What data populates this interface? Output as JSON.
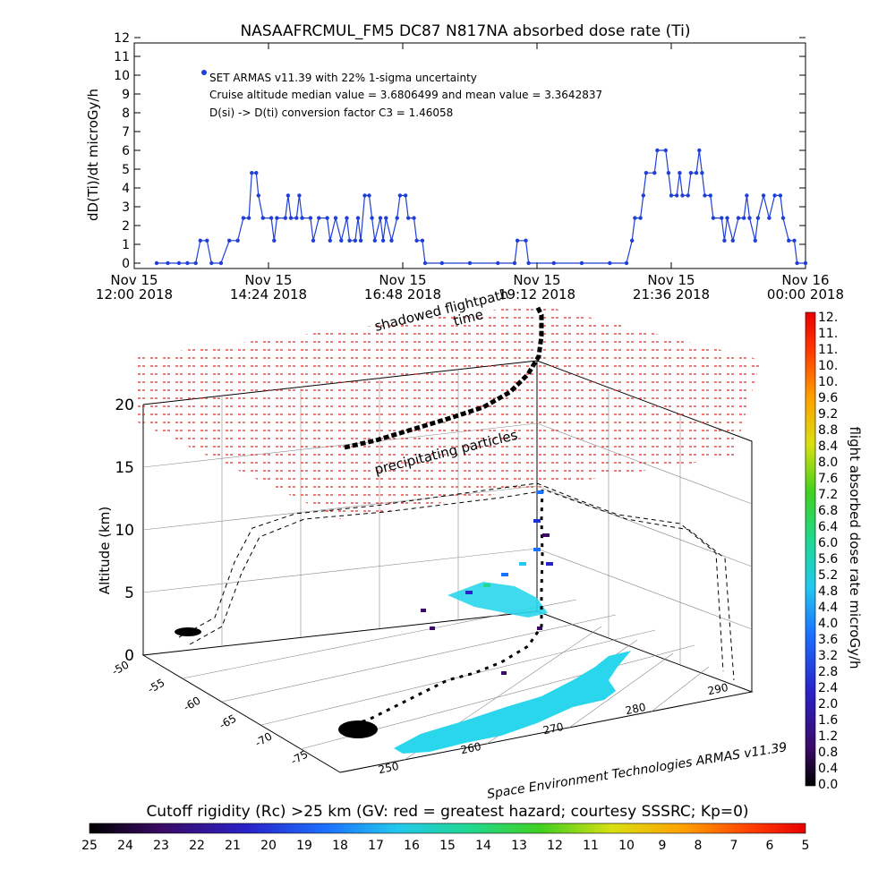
{
  "chart_data": [
    {
      "type": "line",
      "title": "NASAAFRCMUL_FM5 DC87 N817NA absorbed dose rate (Ti)",
      "ylabel": "dD(Ti)/dt microGy/h",
      "ylim": [
        0,
        12
      ],
      "yticks": [
        "0",
        "1",
        "2",
        "3",
        "4",
        "5",
        "6",
        "7",
        "8",
        "9",
        "10",
        "11",
        "12"
      ],
      "xticks": [
        {
          "top": "Nov 15",
          "bottom": "12:00 2018"
        },
        {
          "top": "Nov 15",
          "bottom": "14:24 2018"
        },
        {
          "top": "Nov 15",
          "bottom": "16:48 2018"
        },
        {
          "top": "Nov 15",
          "bottom": "19:12 2018"
        },
        {
          "top": "Nov 15",
          "bottom": "21:36 2018"
        },
        {
          "top": "Nov 16",
          "bottom": "00:00 2018"
        }
      ],
      "xlim_hours": [
        12.0,
        24.0
      ],
      "legend_text": [
        "SET ARMAS v11.39 with 22% 1-sigma uncertainty",
        "Cruise altitude median value = 3.6806499 and mean value = 3.3642837",
        "D(si) -> D(ti) conversion factor C3 = 1.46058"
      ],
      "series": [
        {
          "color": "#1f3fd6",
          "points": [
            [
              12.4,
              0
            ],
            [
              12.6,
              0
            ],
            [
              12.8,
              0
            ],
            [
              12.95,
              0
            ],
            [
              13.1,
              0
            ],
            [
              13.18,
              1.2
            ],
            [
              13.3,
              1.2
            ],
            [
              13.38,
              0
            ],
            [
              13.55,
              0
            ],
            [
              13.7,
              1.2
            ],
            [
              13.85,
              1.2
            ],
            [
              13.95,
              2.4
            ],
            [
              14.05,
              2.4
            ],
            [
              14.1,
              4.8
            ],
            [
              14.18,
              4.8
            ],
            [
              14.22,
              3.6
            ],
            [
              14.3,
              2.4
            ],
            [
              14.45,
              2.4
            ],
            [
              14.5,
              1.2
            ],
            [
              14.55,
              2.4
            ],
            [
              14.7,
              2.4
            ],
            [
              14.75,
              3.6
            ],
            [
              14.8,
              2.4
            ],
            [
              14.9,
              2.4
            ],
            [
              14.95,
              3.6
            ],
            [
              15.0,
              2.4
            ],
            [
              15.15,
              2.4
            ],
            [
              15.2,
              1.2
            ],
            [
              15.3,
              2.4
            ],
            [
              15.45,
              2.4
            ],
            [
              15.5,
              1.2
            ],
            [
              15.6,
              2.4
            ],
            [
              15.7,
              1.2
            ],
            [
              15.8,
              2.4
            ],
            [
              15.85,
              1.2
            ],
            [
              15.95,
              1.2
            ],
            [
              16.0,
              2.4
            ],
            [
              16.05,
              1.2
            ],
            [
              16.12,
              3.6
            ],
            [
              16.2,
              3.6
            ],
            [
              16.25,
              2.4
            ],
            [
              16.3,
              1.2
            ],
            [
              16.4,
              2.4
            ],
            [
              16.45,
              1.2
            ],
            [
              16.5,
              2.4
            ],
            [
              16.6,
              1.2
            ],
            [
              16.7,
              2.4
            ],
            [
              16.75,
              3.6
            ],
            [
              16.85,
              3.6
            ],
            [
              16.9,
              2.4
            ],
            [
              17.0,
              2.4
            ],
            [
              17.05,
              1.2
            ],
            [
              17.15,
              1.2
            ],
            [
              17.2,
              0
            ],
            [
              17.5,
              0
            ],
            [
              18.0,
              0
            ],
            [
              18.5,
              0
            ],
            [
              18.8,
              0
            ],
            [
              18.85,
              1.2
            ],
            [
              19.0,
              1.2
            ],
            [
              19.05,
              0
            ],
            [
              19.5,
              0
            ],
            [
              20.0,
              0
            ],
            [
              20.5,
              0
            ],
            [
              20.8,
              0
            ],
            [
              20.9,
              1.2
            ],
            [
              20.95,
              2.4
            ],
            [
              21.05,
              2.4
            ],
            [
              21.1,
              3.6
            ],
            [
              21.15,
              4.8
            ],
            [
              21.3,
              4.8
            ],
            [
              21.35,
              6.0
            ],
            [
              21.5,
              6.0
            ],
            [
              21.55,
              4.8
            ],
            [
              21.6,
              3.6
            ],
            [
              21.7,
              3.6
            ],
            [
              21.75,
              4.8
            ],
            [
              21.8,
              3.6
            ],
            [
              21.9,
              3.6
            ],
            [
              21.95,
              4.8
            ],
            [
              22.05,
              4.8
            ],
            [
              22.1,
              6.0
            ],
            [
              22.15,
              4.8
            ],
            [
              22.2,
              3.6
            ],
            [
              22.3,
              3.6
            ],
            [
              22.35,
              2.4
            ],
            [
              22.5,
              2.4
            ],
            [
              22.55,
              1.2
            ],
            [
              22.6,
              2.4
            ],
            [
              22.7,
              1.2
            ],
            [
              22.8,
              2.4
            ],
            [
              22.9,
              2.4
            ],
            [
              22.95,
              3.6
            ],
            [
              23.0,
              2.4
            ],
            [
              23.1,
              1.2
            ],
            [
              23.15,
              2.4
            ],
            [
              23.25,
              3.6
            ],
            [
              23.35,
              2.4
            ],
            [
              23.45,
              3.6
            ],
            [
              23.55,
              3.6
            ],
            [
              23.6,
              2.4
            ],
            [
              23.7,
              1.2
            ],
            [
              23.8,
              1.2
            ],
            [
              23.85,
              0
            ],
            [
              24.0,
              0
            ]
          ]
        }
      ]
    },
    {
      "type": "3d-trajectory",
      "zlabel": "Altitude (km)",
      "zticks": [
        "0",
        "5",
        "10",
        "15",
        "20"
      ],
      "zlim": [
        0,
        20
      ],
      "lat_ticks": [
        "-50",
        "-55",
        "-60",
        "-65",
        "-70",
        "-75"
      ],
      "lon_ticks": [
        "250",
        "260",
        "270",
        "280",
        "290"
      ],
      "annotations": [
        "shadowed flightpath",
        "time",
        "precipitating particles"
      ],
      "credit": "Space Environment Technologies ARMAS v11.39"
    },
    {
      "type": "colorbar",
      "orientation": "vertical",
      "label": "flight absorbed dose rate microGy/h",
      "ticks": [
        "12.",
        "11.",
        "11.",
        "10.",
        "10.",
        "9.6",
        "9.2",
        "8.8",
        "8.4",
        "8.0",
        "7.6",
        "7.2",
        "6.8",
        "6.4",
        "6.0",
        "5.6",
        "5.2",
        "4.8",
        "4.4",
        "4.0",
        "3.6",
        "3.2",
        "2.8",
        "2.4",
        "2.0",
        "1.6",
        "1.2",
        "0.8",
        "0.4",
        "0.0"
      ]
    },
    {
      "type": "colorbar",
      "orientation": "horizontal",
      "label": "Cutoff rigidity (Rc) >25 km (GV: red = greatest hazard; courtesy SSSRC; Kp=0)",
      "ticks": [
        "25",
        "24",
        "23",
        "22",
        "21",
        "20",
        "19",
        "18",
        "17",
        "16",
        "15",
        "14",
        "13",
        "12",
        "11",
        "10",
        "9",
        "8",
        "7",
        "6",
        "5"
      ]
    }
  ]
}
